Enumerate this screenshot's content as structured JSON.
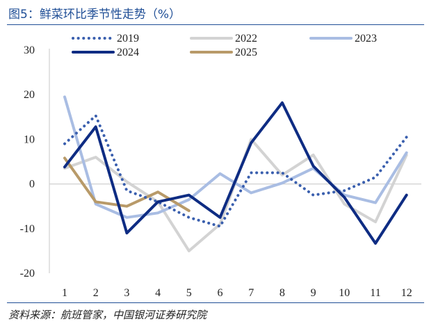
{
  "title": "图5：鲜菜环比季节性走势（%）",
  "source": "资料来源：航班管家，中国银河证券研究院",
  "chart_data": {
    "type": "line",
    "title": "图5：鲜菜环比季节性走势（%）",
    "xlabel": "",
    "ylabel": "",
    "categories": [
      "1",
      "2",
      "3",
      "4",
      "5",
      "6",
      "7",
      "8",
      "9",
      "10",
      "11",
      "12"
    ],
    "ylim": [
      -20,
      30
    ],
    "yticks": [
      -20,
      -10,
      0,
      10,
      20,
      30
    ],
    "legend_position": "top",
    "series": [
      {
        "name": "2019",
        "color": "#3a5fae",
        "style": "dotted",
        "values": [
          9,
          15.3,
          -1.5,
          -4,
          -7.5,
          -9.5,
          2.5,
          2.5,
          -2.5,
          -1.5,
          1.5,
          10.5
        ]
      },
      {
        "name": "2022",
        "color": "#d3d3d3",
        "style": "solid",
        "values": [
          3.5,
          6,
          0.5,
          -4,
          -15,
          -9,
          10,
          2,
          6.5,
          -4.5,
          -8.5,
          6.5
        ]
      },
      {
        "name": "2023",
        "color": "#a9bde3",
        "style": "solid",
        "values": [
          19.5,
          -4.5,
          -7.5,
          -6.5,
          -3.5,
          2.3,
          -2,
          0.2,
          3.5,
          -2.5,
          -4.2,
          7
        ]
      },
      {
        "name": "2024",
        "color": "#0e2c83",
        "style": "solid",
        "values": [
          3.8,
          12.8,
          -11,
          -4,
          -2.5,
          -7.5,
          9.2,
          18.2,
          4,
          -3,
          -13.3,
          -2.5
        ]
      },
      {
        "name": "2025",
        "color": "#b89a69",
        "style": "solid",
        "values": [
          5.8,
          -4,
          -5,
          -1.8,
          -6,
          null,
          null,
          null,
          null,
          null,
          null,
          null
        ]
      }
    ]
  }
}
